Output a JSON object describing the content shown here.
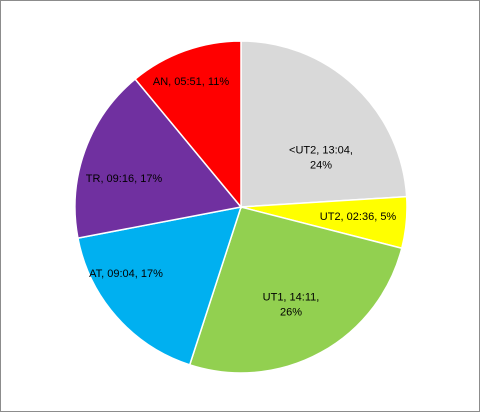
{
  "chart_data": {
    "type": "pie",
    "title": "",
    "start_angle_deg": 0,
    "direction": "clockwise",
    "slices": [
      {
        "name": "<UT2",
        "time": "13:04",
        "value": 24,
        "color": "#d9d9d9",
        "label_lines": [
          "<UT2,  13:04,",
          "24%"
        ]
      },
      {
        "name": "UT2",
        "time": "02:36",
        "value": 5,
        "color": "#ffff00",
        "label_lines": [
          "UT2, 02:36, 5%"
        ]
      },
      {
        "name": "UT1",
        "time": "14:11",
        "value": 26,
        "color": "#92d050",
        "label_lines": [
          "UT1, 14:11,",
          "26%"
        ]
      },
      {
        "name": "AT",
        "time": "09:04",
        "value": 17,
        "color": "#00b0f0",
        "label_lines": [
          "AT,  09:04, 17%"
        ]
      },
      {
        "name": "TR",
        "time": "09:16",
        "value": 17,
        "color": "#7030a0",
        "label_lines": [
          "TR, 09:16, 17%"
        ]
      },
      {
        "name": "AN",
        "time": "05:51",
        "value": 11,
        "color": "#ff0000",
        "label_lines": [
          "AN,  05:51, 11%"
        ]
      }
    ]
  }
}
